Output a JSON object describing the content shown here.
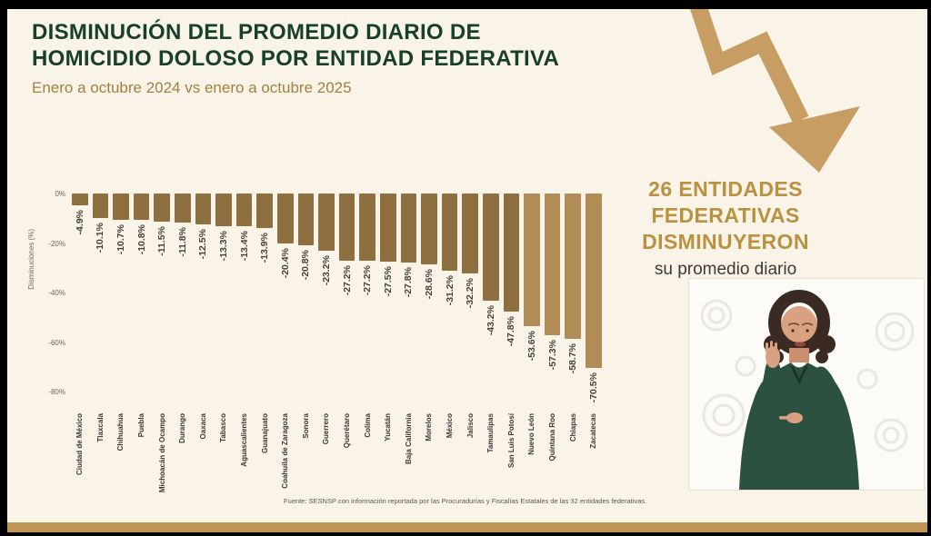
{
  "header": {
    "title_line1": "DISMINUCIÓN DEL PROMEDIO DIARIO DE",
    "title_line2": "HOMICIDIO DOLOSO POR ENTIDAD FEDERATIVA",
    "subtitle": "Enero a octubre 2024 vs enero a octubre 2025"
  },
  "callout": {
    "line1": "26 ENTIDADES",
    "line2": "FEDERATIVAS",
    "line3": "DISMINUYERON",
    "sub": "su promedio diario"
  },
  "chart_data": {
    "type": "bar",
    "title": "",
    "xlabel": "",
    "ylabel": "Disminuciones (%)",
    "ylim": [
      -80,
      0
    ],
    "yticks": [
      "0%",
      "-20%",
      "-40%",
      "-60%",
      "-80%"
    ],
    "grid": false,
    "legend": false,
    "categories": [
      "Ciudad de México",
      "Tlaxcala",
      "Chihuahua",
      "Puebla",
      "Michoacán de Ocampo",
      "Durango",
      "Oaxaca",
      "Tabasco",
      "Aguascalientes",
      "Guanajuato",
      "Coahuila de Zaragoza",
      "Sonora",
      "Guerrero",
      "Querétaro",
      "Colima",
      "Yucatán",
      "Baja California",
      "Morelos",
      "México",
      "Jalisco",
      "Tamaulipas",
      "San Luis Potosí",
      "Nuevo León",
      "Quintana Roo",
      "Chiapas",
      "Zacatecas"
    ],
    "values": [
      -4.9,
      -10.1,
      -10.7,
      -10.8,
      -11.5,
      -11.8,
      -12.5,
      -13.3,
      -13.4,
      -13.9,
      -20.4,
      -20.8,
      -23.2,
      -27.2,
      -27.2,
      -27.5,
      -27.8,
      -28.6,
      -31.2,
      -32.2,
      -43.2,
      -47.8,
      -53.6,
      -57.3,
      -58.7,
      -70.5
    ],
    "value_labels": [
      "-4.9%",
      "-10.1%",
      "-10.7%",
      "-10.8%",
      "-11.5%",
      "-11.8%",
      "-12.5%",
      "-13.3%",
      "-13.4%",
      "-13.9%",
      "-20.4%",
      "-20.8%",
      "-23.2%",
      "-27.2%",
      "-27.2%",
      "-27.5%",
      "-27.8%",
      "-28.6%",
      "-31.2%",
      "-32.2%",
      "-43.2%",
      "-47.8%",
      "-53.6%",
      "-57.3%",
      "-58.7%",
      "-70.5%"
    ],
    "colors": {
      "dark": "#8e6f3f",
      "light": "#b28c56",
      "light_from_index": 22
    }
  },
  "footer": {
    "source": "Fuente: SESNSP con información reportada por las Procuradurías y Fiscalías Estatales de las 32 entidades federativas."
  },
  "colors": {
    "background": "#faf3e7",
    "title_green": "#16402a",
    "subtitle_gold": "#a0823c",
    "callout_gold": "#b9913f",
    "arrow_gold": "#c79d64",
    "bottom_strip": "#bf9455",
    "letterbox": "#000000"
  }
}
